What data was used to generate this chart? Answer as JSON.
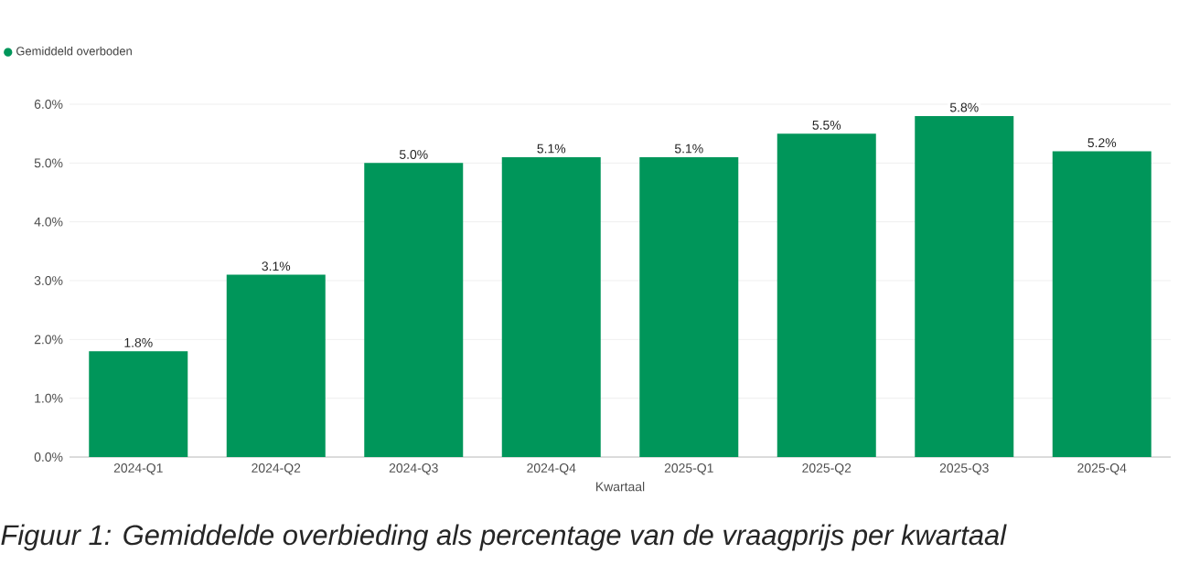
{
  "chart_data": {
    "type": "bar",
    "categories": [
      "2024-Q1",
      "2024-Q2",
      "2024-Q3",
      "2024-Q4",
      "2025-Q1",
      "2025-Q2",
      "2025-Q3",
      "2025-Q4"
    ],
    "series": [
      {
        "name": "Gemiddeld overboden",
        "color": "#00965a",
        "values": [
          1.8,
          3.1,
          5.0,
          5.1,
          5.1,
          5.5,
          5.8,
          5.2
        ],
        "value_labels": [
          "1.8%",
          "3.1%",
          "5.0%",
          "5.1%",
          "5.1%",
          "5.5%",
          "5.8%",
          "5.2%"
        ]
      }
    ],
    "xlabel": "Kwartaal",
    "ylim": [
      0,
      6
    ],
    "yticks": [
      {
        "value": 0,
        "label": "0.0%"
      },
      {
        "value": 1,
        "label": "1.0%"
      },
      {
        "value": 2,
        "label": "2.0%"
      },
      {
        "value": 3,
        "label": "3.0%"
      },
      {
        "value": 4,
        "label": "4.0%"
      },
      {
        "value": 5,
        "label": "5.0%"
      },
      {
        "value": 6,
        "label": "6.0%"
      }
    ],
    "grid": "y",
    "legend": "top left",
    "annotations": [
      "*Figuur 1: Gemiddelde overbieding als percentage van de vraagprijs per kwartaal*"
    ]
  }
}
